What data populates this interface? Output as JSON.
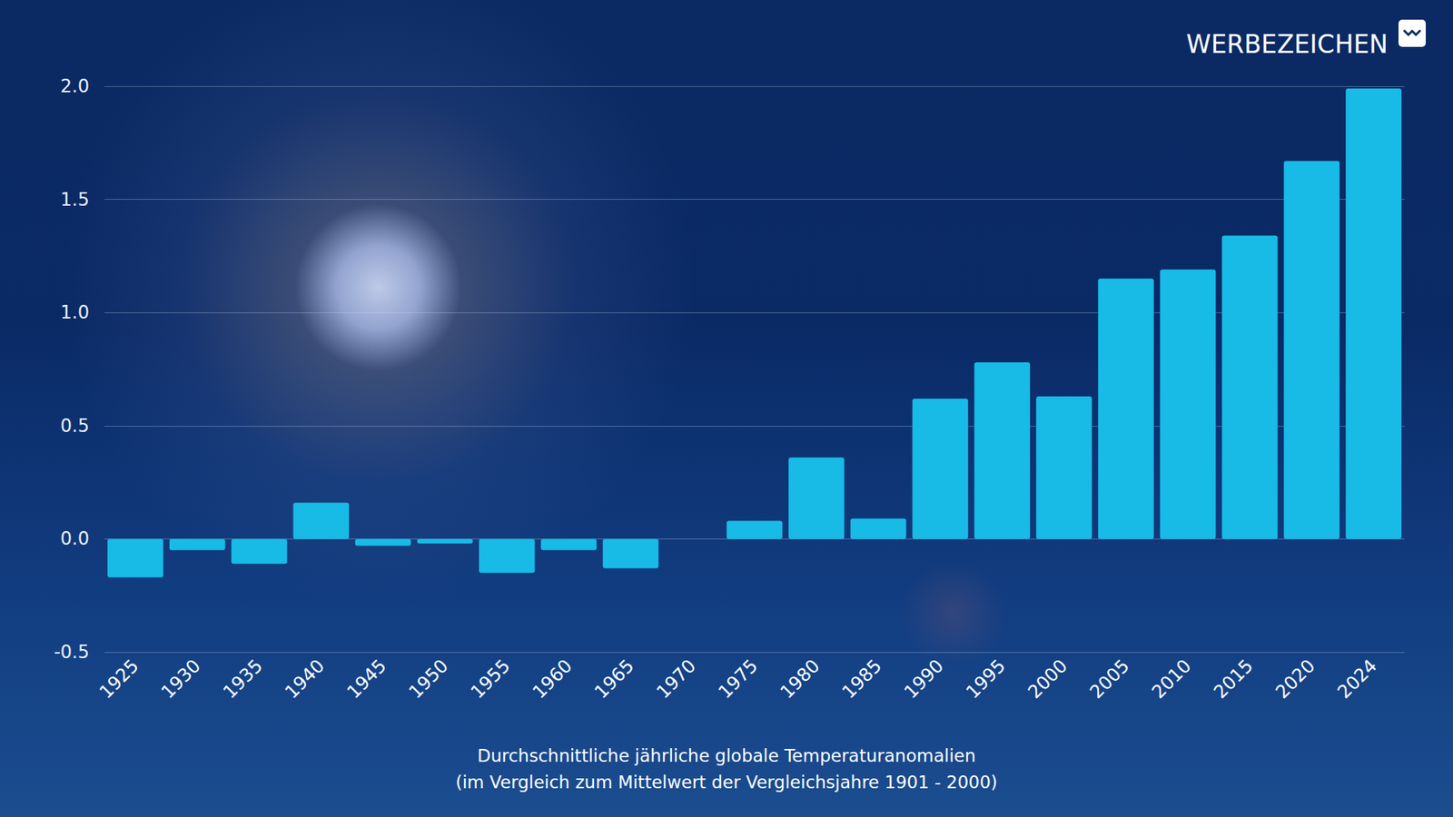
{
  "chart_data": {
    "type": "bar",
    "title": "Durchschnittliche jährliche globale Temperaturanomalien",
    "subtitle": "(im Vergleich zum Mittelwert der Vergleichsjahre 1901 - 2000)",
    "annotations": [
      "WERBEZEICHEN"
    ],
    "categories": [
      "1925",
      "1930",
      "1935",
      "1940",
      "1945",
      "1950",
      "1955",
      "1960",
      "1965",
      "1970",
      "1975",
      "1980",
      "1985",
      "1990",
      "1995",
      "2000",
      "2005",
      "2010",
      "2015",
      "2020",
      "2024"
    ],
    "values": [
      -0.17,
      -0.05,
      -0.11,
      0.16,
      -0.03,
      -0.02,
      -0.15,
      -0.05,
      -0.13,
      0.0,
      0.08,
      0.36,
      0.09,
      0.62,
      0.78,
      0.63,
      1.15,
      1.19,
      1.34,
      1.67,
      1.99
    ],
    "color": "#17bbe6",
    "ylim": [
      -0.5,
      2
    ],
    "yticks": [
      -0.5,
      {
        "value": 0,
        "label": "0.0"
      },
      0.5,
      {
        "value": 1,
        "label": "1.0"
      },
      1.5,
      {
        "value": 2,
        "label": "2.0"
      }
    ],
    "grid": true
  }
}
